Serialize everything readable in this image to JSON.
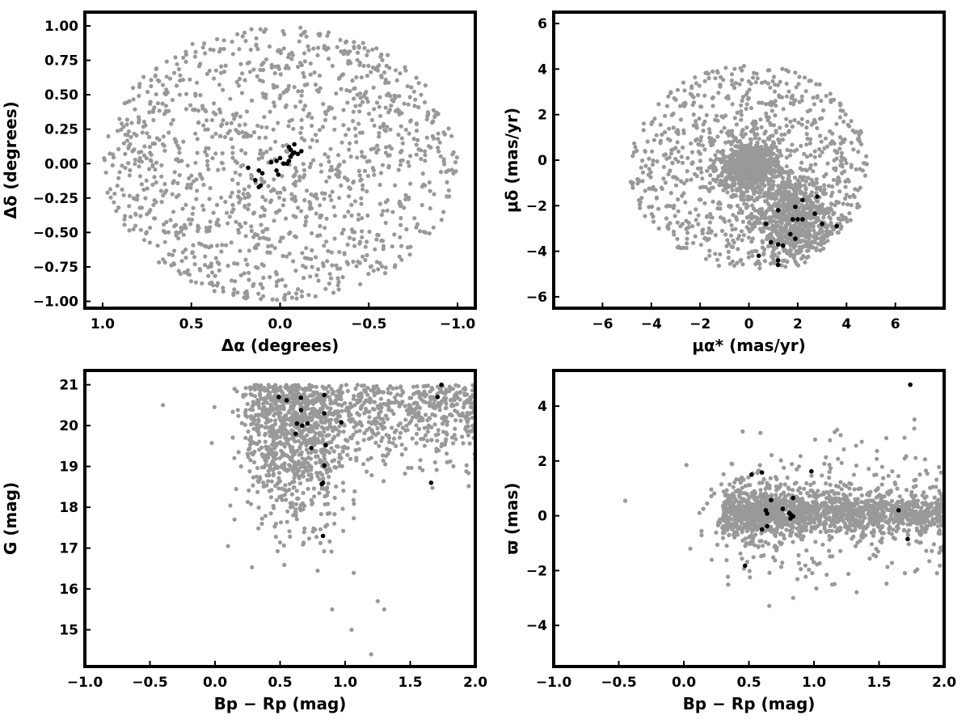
{
  "chart_data": [
    {
      "type": "scatter",
      "xlabel": "Δα (degrees)",
      "ylabel": "Δδ (degrees)",
      "xlim": [
        1.1,
        -1.1
      ],
      "ylim": [
        -1.05,
        1.1
      ],
      "xticks": [
        1.0,
        0.5,
        0.0,
        -0.5,
        -1.0
      ],
      "xtick_labels": [
        "1.0",
        "0.5",
        "0.0",
        "−0.5",
        "−1.0"
      ],
      "yticks": [
        -1.0,
        -0.75,
        -0.5,
        -0.25,
        0.0,
        0.25,
        0.5,
        0.75,
        1.0
      ],
      "ytick_labels": [
        "−1.00",
        "−0.75",
        "−0.50",
        "−0.25",
        "0.00",
        "0.25",
        "0.50",
        "0.75",
        "1.00"
      ],
      "background": {
        "color": "#999999",
        "description": "field stars filling a circle of radius 1 degree",
        "sample": [
          [
            0.5,
            0.6
          ],
          [
            -0.4,
            0.7
          ],
          [
            0.8,
            0.3
          ],
          [
            -0.9,
            0.1
          ],
          [
            0.2,
            -0.8
          ],
          [
            -0.6,
            -0.5
          ],
          [
            0.1,
            0.9
          ],
          [
            -0.2,
            -0.95
          ],
          [
            0.9,
            -0.3
          ],
          [
            -0.75,
            0.45
          ],
          [
            0.35,
            0.2
          ],
          [
            -0.3,
            -0.3
          ]
        ]
      },
      "members": {
        "color": "#000000",
        "points": [
          [
            0.18,
            -0.03
          ],
          [
            0.12,
            -0.05
          ],
          [
            0.1,
            -0.07
          ],
          [
            0.14,
            -0.12
          ],
          [
            0.11,
            -0.16
          ],
          [
            0.12,
            -0.17
          ],
          [
            0.05,
            0.01
          ],
          [
            0.02,
            0.02
          ],
          [
            0.0,
            0.04
          ],
          [
            -0.02,
            0.0
          ],
          [
            -0.04,
            0.0
          ],
          [
            -0.05,
            0.02
          ],
          [
            -0.06,
            0.05
          ],
          [
            -0.07,
            0.07
          ],
          [
            -0.06,
            0.1
          ],
          [
            -0.08,
            0.08
          ],
          [
            -0.1,
            0.07
          ],
          [
            -0.12,
            0.09
          ],
          [
            -0.08,
            0.14
          ],
          [
            0.02,
            -0.05
          ],
          [
            0.01,
            -0.08
          ],
          [
            -0.05,
            0.12
          ]
        ]
      }
    },
    {
      "type": "scatter",
      "xlabel": "μα* (mas/yr)",
      "ylabel": "μδ (mas/yr)",
      "xlim": [
        -8,
        8
      ],
      "ylim": [
        -6.5,
        6.5
      ],
      "xticks": [
        -6,
        -4,
        -2,
        0,
        2,
        4,
        6
      ],
      "xtick_labels": [
        "−6",
        "−4",
        "−2",
        "0",
        "2",
        "4",
        "6"
      ],
      "yticks": [
        -6,
        -4,
        -2,
        0,
        2,
        4,
        6
      ],
      "ytick_labels": [
        "−6",
        "−4",
        "−2",
        "0",
        "2",
        "4",
        "6"
      ],
      "background": {
        "color": "#999999",
        "description": "field stars within an ellipse, with dense clumps near (0,0) and (1.5,-2.5)",
        "sample": [
          [
            0,
            0
          ],
          [
            -0.5,
            0.5
          ],
          [
            0.5,
            -0.5
          ],
          [
            1.5,
            -2.5
          ],
          [
            2,
            -2
          ],
          [
            -3,
            1
          ],
          [
            3,
            2
          ],
          [
            -2,
            -3
          ],
          [
            4,
            0
          ],
          [
            0,
            4
          ],
          [
            0,
            -4.5
          ],
          [
            -4.5,
            -0.5
          ]
        ]
      },
      "members": {
        "color": "#000000",
        "points": [
          [
            2.2,
            -1.75
          ],
          [
            2.8,
            -1.6
          ],
          [
            1.9,
            -2.05
          ],
          [
            1.2,
            -2.2
          ],
          [
            2.0,
            -2.6
          ],
          [
            2.2,
            -2.6
          ],
          [
            1.8,
            -2.6
          ],
          [
            2.7,
            -2.35
          ],
          [
            0.7,
            -2.8
          ],
          [
            3.0,
            -2.8
          ],
          [
            3.6,
            -2.9
          ],
          [
            1.7,
            -3.25
          ],
          [
            1.9,
            -3.45
          ],
          [
            0.9,
            -3.6
          ],
          [
            1.2,
            -3.7
          ],
          [
            1.4,
            -3.75
          ],
          [
            0.4,
            -4.2
          ],
          [
            1.2,
            -4.4
          ],
          [
            1.2,
            -4.6
          ]
        ]
      }
    },
    {
      "type": "scatter",
      "xlabel": "Bp − Rp (mag)",
      "ylabel": "G (mag)",
      "xlim": [
        -1.0,
        2.0
      ],
      "ylim": [
        14.1,
        21.35
      ],
      "xticks": [
        -1.0,
        -0.5,
        0.0,
        0.5,
        1.0,
        1.5,
        2.0
      ],
      "xtick_labels": [
        "−1.0",
        "−0.5",
        "0.0",
        "0.5",
        "1.0",
        "1.5",
        "2.0"
      ],
      "yticks": [
        15,
        16,
        17,
        18,
        19,
        20,
        21
      ],
      "ytick_labels": [
        "15",
        "16",
        "17",
        "18",
        "19",
        "20",
        "21"
      ],
      "background": {
        "color": "#999999",
        "description": "colour-magnitude diagram of field stars, concentrated at faint magnitudes",
        "sample": [
          [
            0.6,
            20.5
          ],
          [
            0.8,
            20.0
          ],
          [
            1.0,
            19.0
          ],
          [
            1.5,
            20.3
          ],
          [
            1.8,
            20.5
          ],
          [
            0.7,
            19.5
          ],
          [
            0.9,
            18.2
          ],
          [
            1.2,
            20.8
          ],
          [
            -0.4,
            20.5
          ],
          [
            1.05,
            15.0
          ],
          [
            1.2,
            14.4
          ],
          [
            0.8,
            17.5
          ]
        ]
      },
      "members": {
        "color": "#000000",
        "points": [
          [
            1.74,
            21.0
          ],
          [
            0.49,
            20.7
          ],
          [
            0.66,
            20.68
          ],
          [
            0.84,
            20.75
          ],
          [
            1.71,
            20.7
          ],
          [
            0.55,
            20.62
          ],
          [
            0.66,
            20.38
          ],
          [
            0.84,
            20.3
          ],
          [
            0.97,
            20.08
          ],
          [
            0.63,
            20.05
          ],
          [
            0.71,
            20.05
          ],
          [
            0.67,
            20.0
          ],
          [
            0.62,
            19.8
          ],
          [
            0.85,
            19.52
          ],
          [
            0.74,
            19.45
          ],
          [
            0.84,
            19.02
          ],
          [
            0.83,
            18.6
          ],
          [
            0.82,
            18.57
          ],
          [
            1.66,
            18.6
          ],
          [
            0.83,
            17.3
          ]
        ]
      }
    },
    {
      "type": "scatter",
      "xlabel": "Bp − Rp (mag)",
      "ylabel": "ϖ (mas)",
      "xlim": [
        -1.0,
        2.0
      ],
      "ylim": [
        -5.5,
        5.3
      ],
      "xticks": [
        -1.0,
        -0.5,
        0.0,
        0.5,
        1.0,
        1.5,
        2.0
      ],
      "xtick_labels": [
        "−1.0",
        "−0.5",
        "0.0",
        "0.5",
        "1.0",
        "1.5",
        "2.0"
      ],
      "yticks": [
        -4,
        -2,
        0,
        2,
        4
      ],
      "ytick_labels": [
        "−4",
        "−2",
        "0",
        "2",
        "4"
      ],
      "background": {
        "color": "#999999",
        "description": "field-star parallaxes clustered around 0 mas across colours 0.3 to 2.0",
        "sample": [
          [
            0.6,
            0.2
          ],
          [
            0.8,
            -0.3
          ],
          [
            1.0,
            0.4
          ],
          [
            1.3,
            0.1
          ],
          [
            1.6,
            0.5
          ],
          [
            1.9,
            0.7
          ],
          [
            0.5,
            -1.5
          ],
          [
            0.7,
            2.0
          ],
          [
            1.2,
            -2.0
          ],
          [
            1.5,
            3.0
          ],
          [
            -0.45,
            0.55
          ],
          [
            0.05,
            -1.2
          ]
        ]
      },
      "members": {
        "color": "#000000",
        "points": [
          [
            1.74,
            4.78
          ],
          [
            0.98,
            1.62
          ],
          [
            0.52,
            1.5
          ],
          [
            0.6,
            1.58
          ],
          [
            0.84,
            0.65
          ],
          [
            0.67,
            0.57
          ],
          [
            0.76,
            0.25
          ],
          [
            0.63,
            0.2
          ],
          [
            0.64,
            0.08
          ],
          [
            0.81,
            0.1
          ],
          [
            0.82,
            0.05
          ],
          [
            0.84,
            -0.02
          ],
          [
            0.82,
            -0.1
          ],
          [
            1.65,
            0.2
          ],
          [
            0.6,
            -0.5
          ],
          [
            0.64,
            -0.38
          ],
          [
            1.72,
            -0.85
          ],
          [
            0.47,
            -1.82
          ]
        ]
      }
    }
  ]
}
